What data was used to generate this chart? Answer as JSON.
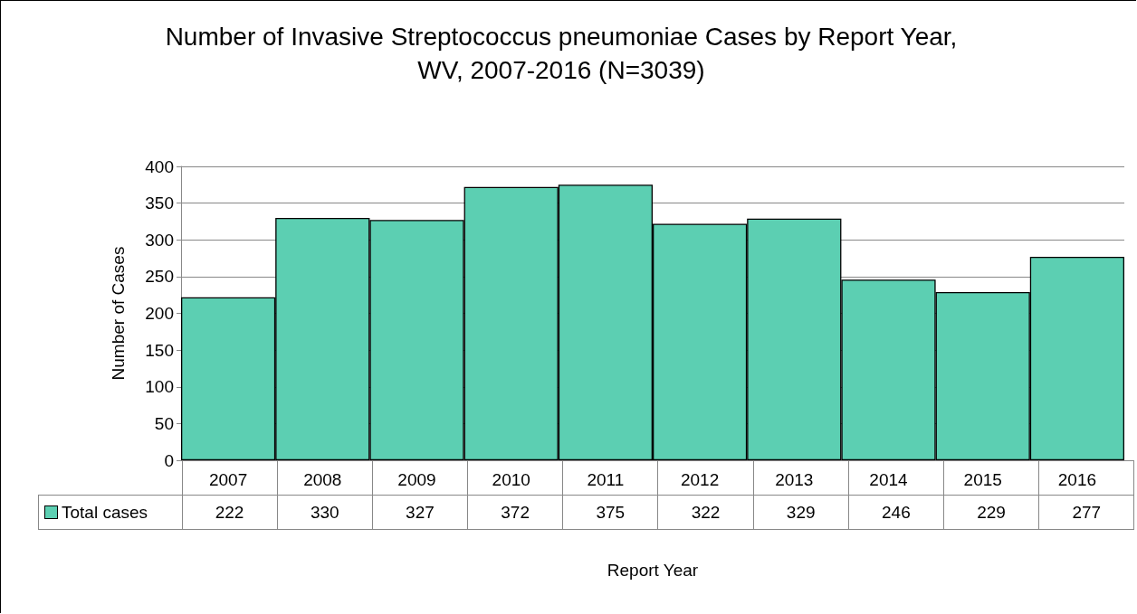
{
  "chart_data": {
    "type": "bar",
    "title": "Number of Invasive Streptococcus pneumoniae Cases by Report Year, WV, 2007-2016 (N=3039)",
    "xlabel": "Report Year",
    "ylabel": "Number of Cases",
    "categories": [
      "2007",
      "2008",
      "2009",
      "2010",
      "2011",
      "2012",
      "2013",
      "2014",
      "2015",
      "2016"
    ],
    "series": [
      {
        "name": "Total cases",
        "color": "#5ccfb2",
        "values": [
          222,
          330,
          327,
          372,
          375,
          322,
          329,
          246,
          229,
          277
        ]
      }
    ],
    "ylim": [
      0,
      400
    ],
    "yticks": [
      0,
      50,
      100,
      150,
      200,
      250,
      300,
      350,
      400
    ],
    "grid": "y",
    "legend": "bottom left",
    "data_labels": true
  }
}
